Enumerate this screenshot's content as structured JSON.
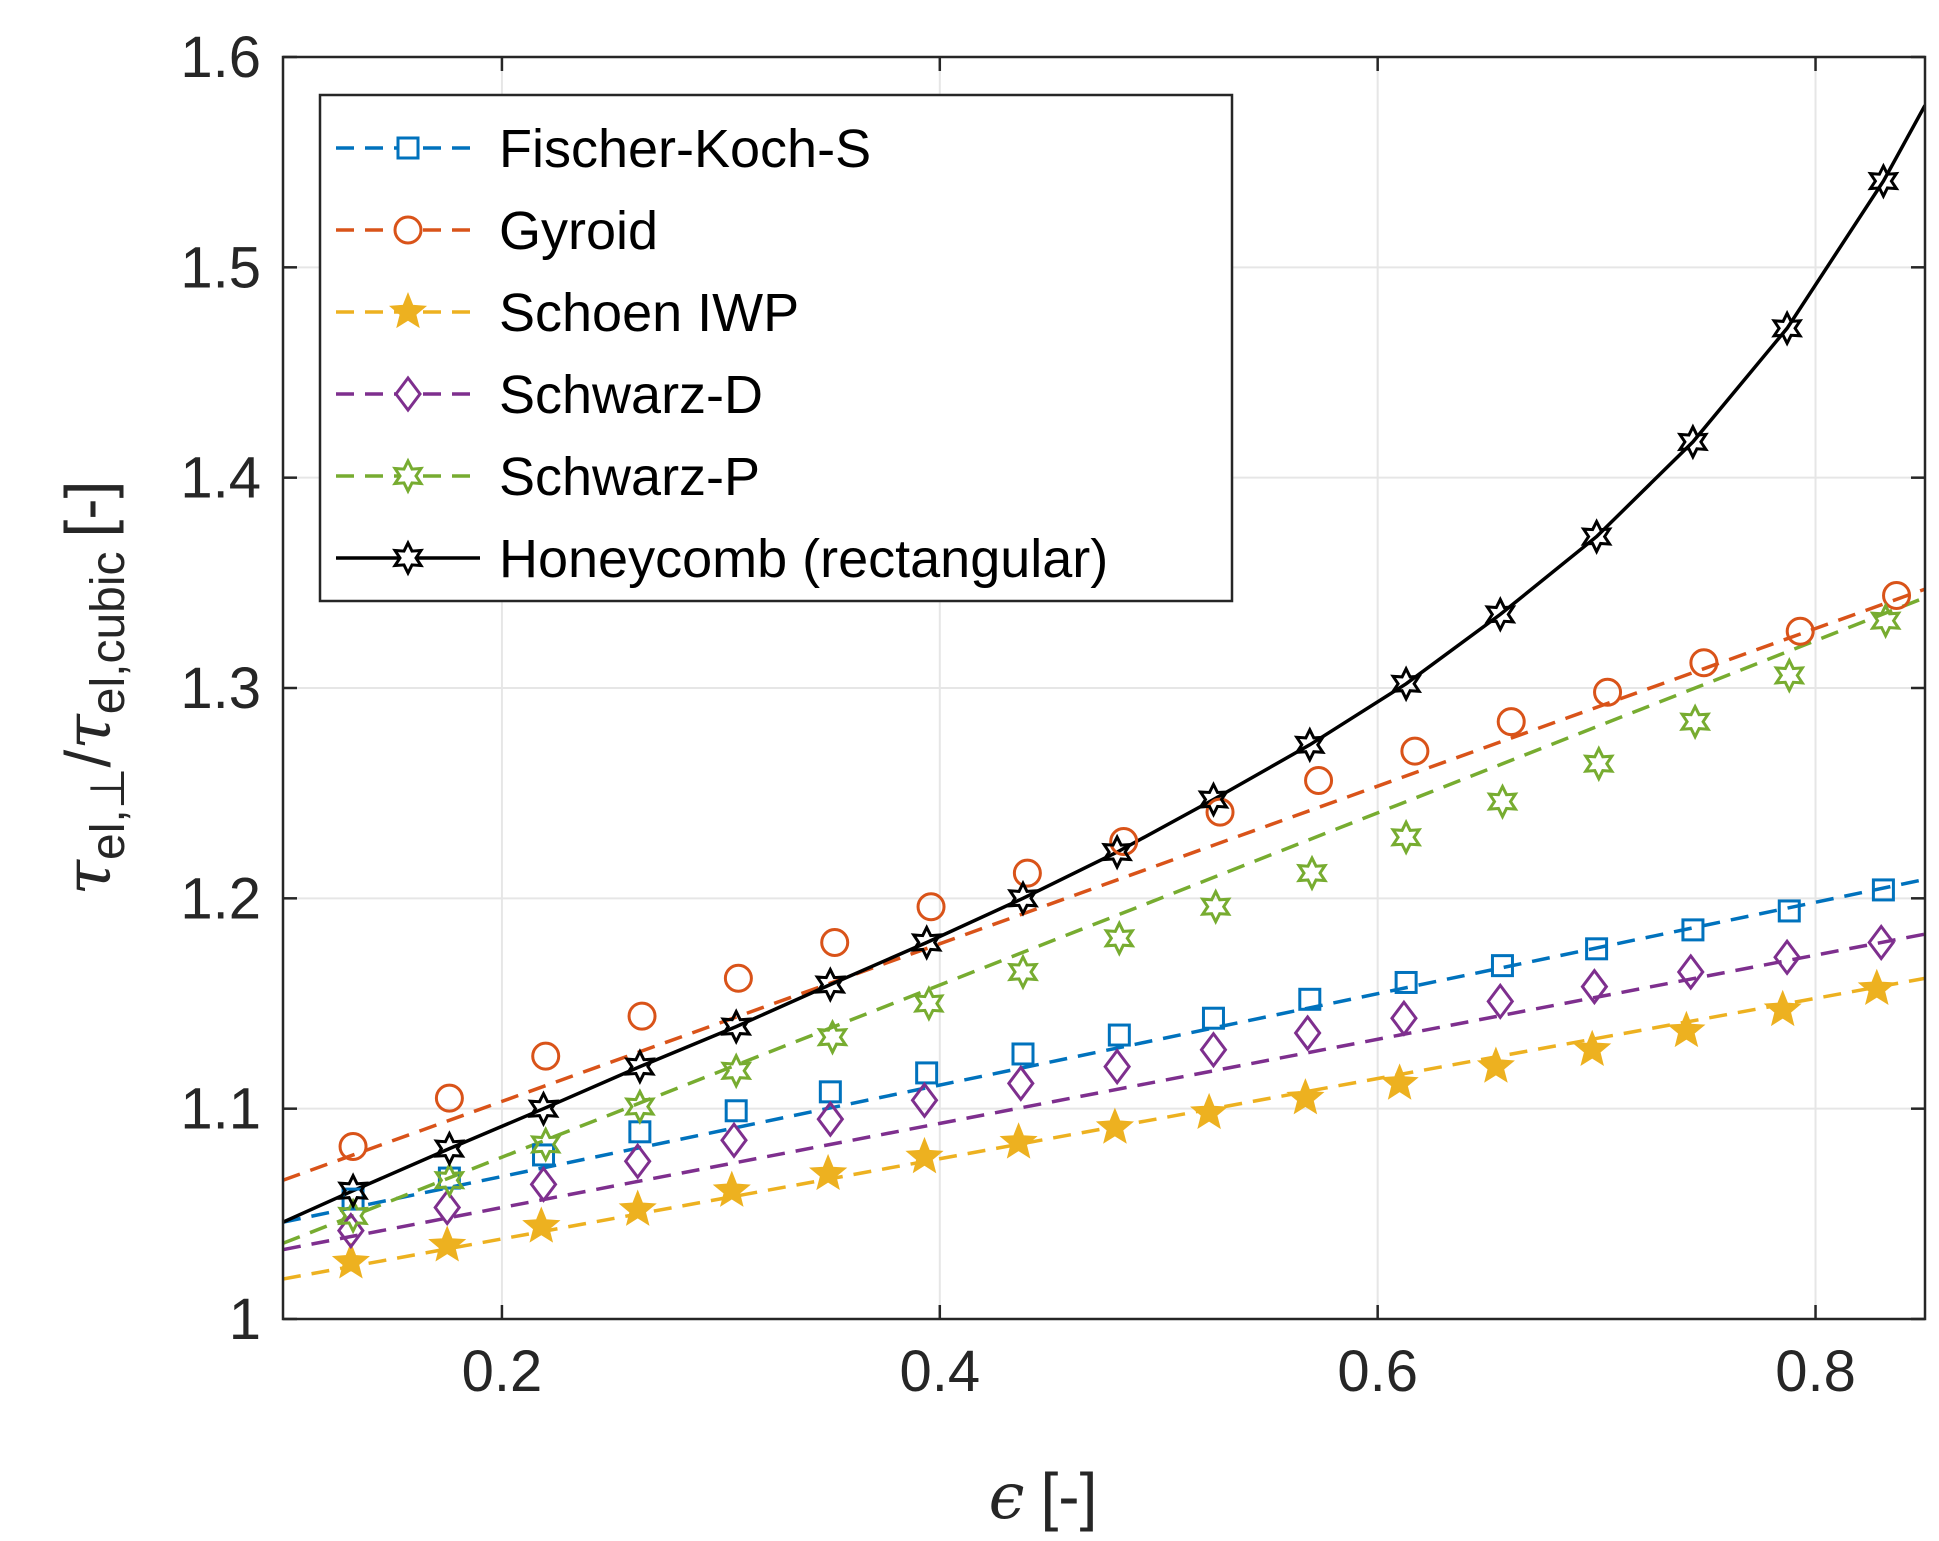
{
  "chart_data": {
    "type": "line",
    "xlabel": {
      "symbol": "ϵ",
      "unit": "[-]"
    },
    "ylabel": {
      "tau": "τ",
      "sub_num": "el,⊥",
      "slash": "/",
      "sub_den": "el,cubic",
      "unit": "[-]"
    },
    "xlim": [
      0.1,
      0.85
    ],
    "ylim": [
      1.0,
      1.6
    ],
    "xticks": [
      0.2,
      0.4,
      0.6,
      0.8
    ],
    "xtick_labels": [
      "0.2",
      "0.4",
      "0.6",
      "0.8"
    ],
    "yticks": [
      1.0,
      1.1,
      1.2,
      1.3,
      1.4,
      1.5,
      1.6
    ],
    "ytick_labels": [
      "1",
      "1.1",
      "1.2",
      "1.3",
      "1.4",
      "1.5",
      "1.6"
    ],
    "grid": true,
    "legend_position": "top-left",
    "series": [
      {
        "name": "Fischer-Koch-S",
        "color": "#0072BD",
        "dash": "dashed",
        "marker": "square",
        "line": {
          "x": [
            0.1,
            0.85
          ],
          "y": [
            1.046,
            1.209
          ]
        },
        "mx": [
          0.132,
          0.176,
          0.219,
          0.263,
          0.307,
          0.35,
          0.394,
          0.438,
          0.482,
          0.525,
          0.569,
          0.613,
          0.657,
          0.7,
          0.744,
          0.788,
          0.831
        ],
        "my": [
          1.057,
          1.067,
          1.078,
          1.089,
          1.099,
          1.108,
          1.117,
          1.126,
          1.135,
          1.143,
          1.152,
          1.16,
          1.168,
          1.176,
          1.185,
          1.194,
          1.204
        ]
      },
      {
        "name": "Gyroid",
        "color": "#D95319",
        "dash": "dashed",
        "marker": "circle",
        "line": {
          "x": [
            0.1,
            0.85
          ],
          "y": [
            1.066,
            1.347
          ]
        },
        "mx": [
          0.132,
          0.176,
          0.22,
          0.264,
          0.308,
          0.352,
          0.396,
          0.44,
          0.484,
          0.528,
          0.573,
          0.617,
          0.661,
          0.705,
          0.749,
          0.793,
          0.837
        ],
        "my": [
          1.082,
          1.105,
          1.125,
          1.144,
          1.162,
          1.179,
          1.196,
          1.212,
          1.227,
          1.241,
          1.256,
          1.27,
          1.284,
          1.298,
          1.312,
          1.327,
          1.344
        ]
      },
      {
        "name": "Schoen IWP",
        "color": "#EDB120",
        "dash": "dashed",
        "marker": "star5",
        "line": {
          "x": [
            0.1,
            0.85
          ],
          "y": [
            1.019,
            1.162
          ]
        },
        "mx": [
          0.131,
          0.175,
          0.218,
          0.262,
          0.305,
          0.349,
          0.393,
          0.436,
          0.48,
          0.523,
          0.567,
          0.61,
          0.654,
          0.698,
          0.741,
          0.785,
          0.828
        ],
        "my": [
          1.027,
          1.035,
          1.044,
          1.052,
          1.061,
          1.069,
          1.077,
          1.084,
          1.091,
          1.098,
          1.105,
          1.112,
          1.12,
          1.128,
          1.137,
          1.147,
          1.157
        ]
      },
      {
        "name": "Schwarz-D",
        "color": "#7E2F8E",
        "dash": "dashed",
        "marker": "diamond",
        "line": {
          "x": [
            0.1,
            0.85
          ],
          "y": [
            1.033,
            1.183
          ]
        },
        "mx": [
          0.131,
          0.175,
          0.219,
          0.262,
          0.306,
          0.35,
          0.393,
          0.437,
          0.481,
          0.525,
          0.568,
          0.612,
          0.656,
          0.699,
          0.743,
          0.787,
          0.83
        ],
        "my": [
          1.042,
          1.053,
          1.064,
          1.075,
          1.085,
          1.095,
          1.104,
          1.112,
          1.12,
          1.128,
          1.136,
          1.143,
          1.151,
          1.158,
          1.165,
          1.172,
          1.179
        ]
      },
      {
        "name": "Schwarz-P",
        "color": "#77AC30",
        "dash": "dashed",
        "marker": "star6",
        "line": {
          "x": [
            0.1,
            0.85
          ],
          "y": [
            1.036,
            1.343
          ]
        },
        "mx": [
          0.132,
          0.176,
          0.22,
          0.263,
          0.307,
          0.351,
          0.395,
          0.438,
          0.482,
          0.526,
          0.57,
          0.613,
          0.657,
          0.701,
          0.745,
          0.788,
          0.832
        ],
        "my": [
          1.049,
          1.066,
          1.083,
          1.101,
          1.118,
          1.134,
          1.15,
          1.165,
          1.181,
          1.196,
          1.212,
          1.229,
          1.246,
          1.264,
          1.284,
          1.306,
          1.332
        ]
      },
      {
        "name": "Honeycomb (rectangular)",
        "color": "#000000",
        "dash": "solid",
        "marker": "star6",
        "line": {
          "x": [
            0.1,
            0.132,
            0.176,
            0.219,
            0.263,
            0.307,
            0.35,
            0.394,
            0.438,
            0.481,
            0.525,
            0.569,
            0.613,
            0.656,
            0.7,
            0.744,
            0.787,
            0.831,
            0.85
          ],
          "y": [
            1.046,
            1.061,
            1.081,
            1.1,
            1.12,
            1.139,
            1.159,
            1.179,
            1.2,
            1.222,
            1.247,
            1.273,
            1.302,
            1.335,
            1.372,
            1.417,
            1.471,
            1.541,
            1.577
          ]
        },
        "mx": [
          0.132,
          0.176,
          0.219,
          0.263,
          0.307,
          0.35,
          0.394,
          0.438,
          0.481,
          0.525,
          0.569,
          0.613,
          0.656,
          0.7,
          0.744,
          0.787,
          0.831
        ],
        "my": [
          1.061,
          1.081,
          1.1,
          1.12,
          1.139,
          1.159,
          1.179,
          1.2,
          1.222,
          1.247,
          1.273,
          1.302,
          1.335,
          1.372,
          1.417,
          1.471,
          1.541
        ]
      }
    ]
  }
}
